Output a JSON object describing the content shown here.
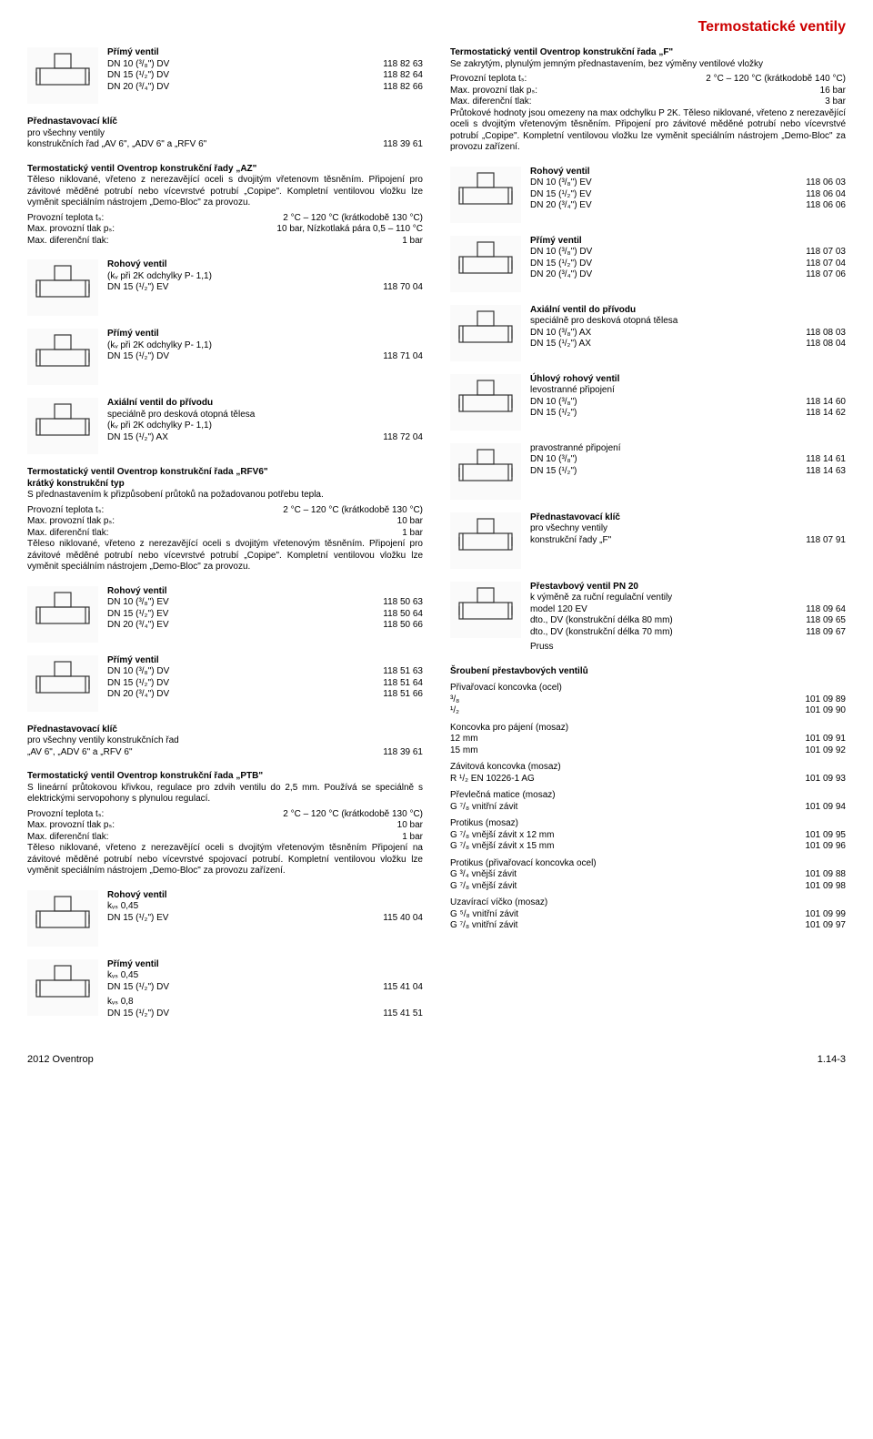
{
  "colors": {
    "accent": "#c00",
    "text": "#000",
    "bg": "#fff",
    "line": "#333"
  },
  "fonts": {
    "base_family": "Arial",
    "base_size_pt": 8,
    "title_size_pt": 12
  },
  "page_title": "Termostatické ventily",
  "footer_left": "2012 Oventrop",
  "footer_right": "1.14-3",
  "col_left": [
    {
      "img": true,
      "heading": "Přímý ventil",
      "rows": [
        [
          "DN 10 (³/₈\") DV",
          "118 82 63"
        ],
        [
          "DN 15 (¹/₂\") DV",
          "118 82 64"
        ],
        [
          "DN 20 (³/₄\") DV",
          "118 82 66"
        ]
      ]
    },
    {
      "heading": "Přednastavovací klíč",
      "sub": "pro všechny ventily",
      "rows": [
        [
          "konstrukčních řad „AV 6\", „ADV 6\" a „RFV 6\"",
          "118 39 61"
        ]
      ]
    },
    {
      "heading": "Termostatický ventil Oventrop konstrukční řady „AZ\"",
      "specs": [
        [
          "Provozní teplota tₛ:",
          "2 °C – 120 °C (krátkodobě 130 °C)"
        ],
        [
          "Max. provozní tlak pₛ:",
          "10 bar, Nízkotlaká pára   0,5 – 110 °C"
        ],
        [
          "Max. diferenční tlak:",
          "1 bar"
        ]
      ],
      "para": "Těleso niklované, vřeteno z nerezavějící oceli s dvojitým vřetenovm těsněním. Připojení pro závitové měděné potrubí nebo vícevrstvé potrubí „Copipe\". Kompletní ventilovou vložku lze vyměnit speciálním nástrojem „Demo-Bloc\" za provozu."
    },
    {
      "img": true,
      "heading": "Rohový ventil",
      "sub": "(kᵥ při 2K odchylky P- 1,1)",
      "rows": [
        [
          "DN 15 (¹/₂\") EV",
          "118 70 04"
        ]
      ]
    },
    {
      "img": true,
      "heading": "Přímý ventil",
      "sub": "(kᵥ při 2K odchylky P- 1,1)",
      "rows": [
        [
          "DN 15 (¹/₂\") DV",
          "118 71 04"
        ]
      ]
    },
    {
      "img": true,
      "heading": "Axiální ventil do přívodu",
      "sub": "speciálně pro desková otopná tělesa\n(kᵥ při 2K odchylky P- 1,1)",
      "rows": [
        [
          "DN 15 (¹/₂\") AX",
          "118 72 04"
        ]
      ]
    },
    {
      "heading": "Termostatický ventil Oventrop konstrukční řada „RFV6\"",
      "sub_bold": "krátký konstrukční typ",
      "para": "S přednastavením k přizpůsobení průtoků na požadovanou potřebu tepla.",
      "specs": [
        [
          "Provozní teplota tₛ:",
          "2 °C – 120 °C (krátkodobě 130 °C)"
        ],
        [
          "Max. provozní tlak pₛ:",
          "10 bar"
        ],
        [
          "Max. diferenční tlak:",
          "1 bar"
        ]
      ],
      "para2": "Těleso niklované, vřeteno z nerezavějící oceli s dvojitým vřetenovým těsněním. Připojení pro závitové měděné potrubí nebo vícevrstvé potrubí „Copipe\". Kompletní ventilovou vložku lze vyměnit speciálním nástrojem „Demo-Bloc\" za provozu."
    },
    {
      "img": true,
      "heading": "Rohový ventil",
      "rows": [
        [
          "DN 10 (³/₈\") EV",
          "118 50 63"
        ],
        [
          "DN 15 (¹/₂\") EV",
          "118 50 64"
        ],
        [
          "DN 20 (³/₄\") EV",
          "118 50 66"
        ]
      ]
    },
    {
      "img": true,
      "heading": "Přímý ventil",
      "rows": [
        [
          "DN 10 (³/₈\") DV",
          "118 51 63"
        ],
        [
          "DN 15 (¹/₂\") DV",
          "118 51 64"
        ],
        [
          "DN 20 (³/₄\") DV",
          "118 51 66"
        ]
      ]
    },
    {
      "heading": "Přednastavovací klíč",
      "sub": "pro všechny ventily konstrukčních řad",
      "rows": [
        [
          "„AV 6\", „ADV 6\" a „RFV 6\"",
          "118 39 61"
        ]
      ]
    },
    {
      "heading": "Termostatický ventil Oventrop konstrukční řada „PTB\"",
      "para": "S lineární průtokovou křivkou, regulace pro zdvih ventilu do 2,5 mm. Používá se speciálně s elektrickými servopohony s plynulou regulací.",
      "specs": [
        [
          "Provozní teplota tₛ:",
          "2 °C – 120 °C (krátkodobě 130 °C)"
        ],
        [
          "Max. provozní tlak pₛ:",
          "10 bar"
        ],
        [
          "Max. diferenční tlak:",
          "1 bar"
        ]
      ],
      "para2": "Těleso niklované, vřeteno z nerezavějící oceli s dvojitým vřetenovým těsněním Připojení na závitové měděné potrubí nebo vícevrstvé spojovací potrubí. Kompletní ventilovou vložku lze vyměnit speciálním nástrojem „Demo-Bloc\" za provozu zařízení."
    },
    {
      "img": true,
      "heading": "Rohový ventil",
      "sub": "kᵥₛ 0,45",
      "rows": [
        [
          "DN 15 (¹/₂\") EV",
          "115 40 04"
        ]
      ]
    },
    {
      "img": true,
      "heading": "Přímý ventil",
      "sub": "kᵥₛ 0,45",
      "rows": [
        [
          "DN 15 (¹/₂\") DV",
          "115 41 04"
        ]
      ],
      "sub2": "kᵥₛ 0,8",
      "rows2": [
        [
          "DN 15 (¹/₂\") DV",
          "115 41 51"
        ]
      ]
    }
  ],
  "col_right": [
    {
      "heading": "Termostatický ventil Oventrop konstrukční řada „F\"",
      "para": "Se zakrytým, plynulým jemným přednastavením, bez výměny ventilové vložky",
      "specs": [
        [
          "Provozní teplota tₛ:",
          "2 °C – 120 °C (krátkodobě 140 °C)"
        ],
        [
          "Max. provozní tlak pₛ:",
          "16 bar"
        ],
        [
          "Max. diferenční tlak:",
          "3 bar"
        ]
      ],
      "para2": "Průtokové hodnoty jsou omezeny na max odchylku P 2K. Těleso niklované, vřeteno z nerezavějící oceli s dvojitým vřetenovým těsněním. Připojení pro závitové měděné potrubí nebo vícevrstvé potrubí „Copipe\". Kompletní ventilovou vložku lze vyměnit speciálním nástrojem „Demo-Bloc\" za provozu zařízení."
    },
    {
      "img": true,
      "heading": "Rohový ventil",
      "rows": [
        [
          "DN 10 (³/₈\") EV",
          "118 06 03"
        ],
        [
          "DN 15 (¹/₂\") EV",
          "118 06 04"
        ],
        [
          "DN 20 (³/₄\") EV",
          "118 06 06"
        ]
      ]
    },
    {
      "img": true,
      "heading": "Přímý ventil",
      "rows": [
        [
          "DN 10 (³/₈\") DV",
          "118 07 03"
        ],
        [
          "DN 15 (¹/₂\") DV",
          "118 07 04"
        ],
        [
          "DN 20 (³/₄\") DV",
          "118 07 06"
        ]
      ]
    },
    {
      "img": true,
      "heading": "Axiální ventil do přívodu",
      "sub": "speciálně pro desková otopná tělesa",
      "rows": [
        [
          "DN 10 (³/₈\") AX",
          "118 08 03"
        ],
        [
          "DN 15 (¹/₂\") AX",
          "118 08 04"
        ]
      ]
    },
    {
      "img": true,
      "heading": "Úhlový rohový ventil",
      "sub": "levostranné připojení",
      "rows": [
        [
          "DN 10 (³/₈\")",
          "118 14 60"
        ],
        [
          "DN 15 (¹/₂\")",
          "118 14 62"
        ]
      ]
    },
    {
      "img": true,
      "sub": "pravostranné připojení",
      "rows": [
        [
          "DN 10 (³/₈\")",
          "118 14 61"
        ],
        [
          "DN 15 (¹/₂\")",
          "118 14 63"
        ]
      ]
    },
    {
      "img": true,
      "heading": "Přednastavovací klíč",
      "sub": "pro všechny ventily",
      "rows": [
        [
          "konstrukční řady „F\"",
          "118 07 91"
        ]
      ]
    },
    {
      "img": true,
      "heading": "Přestavbový ventil PN 20",
      "sub": "k výměně za ruční regulační ventily",
      "sub2": "Pruss",
      "rows": [
        [
          "model 120 EV",
          "118 09 64"
        ],
        [
          "dto., DV (konstrukční délka 80 mm)",
          "118 09 65"
        ],
        [
          "dto., DV (konstrukční délka 70 mm)",
          "118 09 67"
        ]
      ]
    },
    {
      "heading": "Šroubení přestavbových ventilů",
      "groups": [
        {
          "title": "Přivařovací koncovka (ocel)",
          "rows": [
            [
              "³/₈",
              "101 09 89"
            ],
            [
              "¹/₂",
              "101 09 90"
            ]
          ]
        },
        {
          "title": "Koncovka pro pájení (mosaz)",
          "rows": [
            [
              "12 mm",
              "101 09 91"
            ],
            [
              "15 mm",
              "101 09 92"
            ]
          ]
        },
        {
          "title": "Závitová koncovka (mosaz)",
          "rows": [
            [
              "R ¹/₂ EN 10226-1 AG",
              "101 09 93"
            ]
          ]
        },
        {
          "title": "Převlečná matice (mosaz)",
          "rows": [
            [
              "G ⁷/₈ vnitřní závit",
              "101 09 94"
            ]
          ]
        },
        {
          "title": "Protikus (mosaz)",
          "rows": [
            [
              "G ⁷/₈ vnější závit x 12 mm",
              "101 09 95"
            ],
            [
              "G ⁷/₈ vnější závit x 15 mm",
              "101 09 96"
            ]
          ]
        },
        {
          "title": "Protikus (přivařovací koncovka ocel)",
          "rows": [
            [
              "G ³/₄ vnější závit",
              "101 09 88"
            ],
            [
              "G ⁷/₈ vnější závit",
              "101 09 98"
            ]
          ]
        },
        {
          "title": "Uzavírací víčko (mosaz)",
          "rows": [
            [
              "G ⁵/₈ vnitřní závit",
              "101 09 99"
            ],
            [
              "G ⁷/₈ vnitřní závit",
              "101 09 97"
            ]
          ]
        }
      ]
    }
  ]
}
